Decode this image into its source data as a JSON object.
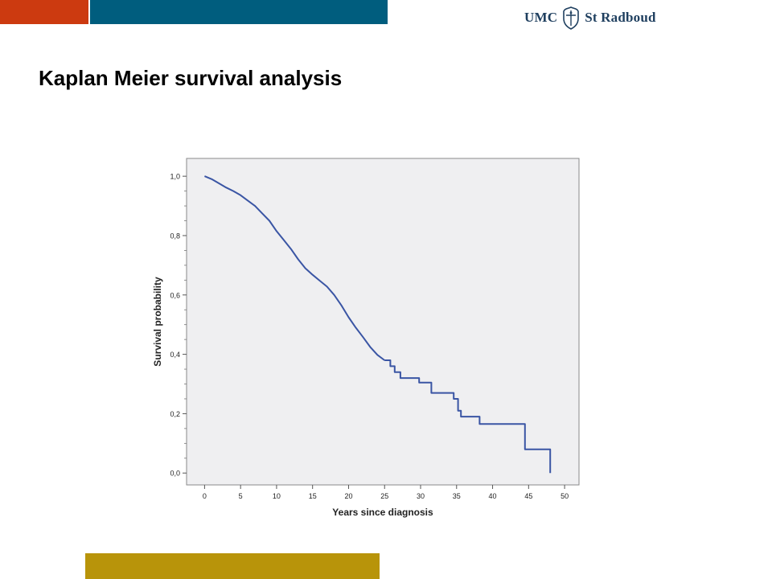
{
  "colors": {
    "red": "#cc3a10",
    "teal": "#005d7e",
    "gold": "#b8940a",
    "line": "#3a55a4",
    "plot_bg": "#efeff1"
  },
  "logo": {
    "left_text": "UMC",
    "right_text": "St Radboud",
    "emblem": "shield-crest-icon"
  },
  "slide": {
    "title": "Kaplan Meier survival analysis"
  },
  "chart_data": {
    "type": "line",
    "title": "",
    "xlabel": "Years since diagnosis",
    "ylabel": "Survival probability",
    "xlim": [
      -2.5,
      52
    ],
    "ylim": [
      -0.04,
      1.06
    ],
    "xticks": [
      0,
      5,
      10,
      15,
      20,
      25,
      30,
      35,
      40,
      45,
      50
    ],
    "xtick_labels": [
      "0",
      "5",
      "10",
      "15",
      "20",
      "25",
      "30",
      "35",
      "40",
      "45",
      "50"
    ],
    "yticks": [
      0,
      0.2,
      0.4,
      0.6,
      0.8,
      1.0
    ],
    "ytick_labels": [
      "0,0",
      "0,2",
      "0,4",
      "0,6",
      "0,8",
      "1,0"
    ],
    "grid": false,
    "series": [
      {
        "step": false,
        "points": [
          [
            0,
            1.0
          ],
          [
            1,
            0.99
          ],
          [
            2,
            0.976
          ],
          [
            3,
            0.962
          ],
          [
            4,
            0.95
          ],
          [
            5,
            0.936
          ],
          [
            6,
            0.918
          ],
          [
            7,
            0.9
          ],
          [
            8,
            0.875
          ],
          [
            9,
            0.85
          ],
          [
            10,
            0.815
          ],
          [
            11,
            0.785
          ],
          [
            12,
            0.755
          ],
          [
            13,
            0.72
          ],
          [
            14,
            0.69
          ],
          [
            15,
            0.668
          ],
          [
            16,
            0.648
          ],
          [
            17,
            0.628
          ],
          [
            18,
            0.6
          ],
          [
            19,
            0.565
          ],
          [
            20,
            0.525
          ],
          [
            21,
            0.49
          ],
          [
            22,
            0.458
          ],
          [
            23,
            0.425
          ],
          [
            24,
            0.398
          ],
          [
            25,
            0.38
          ]
        ]
      },
      {
        "step": true,
        "points": [
          [
            25,
            0.38
          ],
          [
            25.8,
            0.36
          ],
          [
            26.4,
            0.34
          ],
          [
            27.2,
            0.32
          ],
          [
            29.8,
            0.305
          ],
          [
            31.5,
            0.27
          ],
          [
            34.6,
            0.25
          ],
          [
            35.2,
            0.21
          ],
          [
            35.6,
            0.19
          ],
          [
            38.2,
            0.165
          ],
          [
            44.5,
            0.08
          ],
          [
            48,
            0.0
          ]
        ]
      }
    ]
  }
}
